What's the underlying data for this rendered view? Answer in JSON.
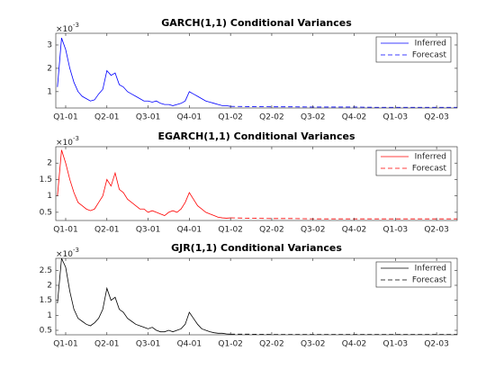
{
  "chart_data": [
    {
      "type": "line",
      "title": "GARCH(1,1) Conditional Variances",
      "y_exponent": {
        "base": "×10",
        "power": "-3"
      },
      "xlim": [
        -0.24,
        9.5
      ],
      "ylim": [
        0.3,
        3.5
      ],
      "yticks": [
        1,
        2,
        3
      ],
      "xticks": [
        {
          "value": 0,
          "label": "Q1-01"
        },
        {
          "value": 1,
          "label": "Q2-01"
        },
        {
          "value": 2,
          "label": "Q3-01"
        },
        {
          "value": 3,
          "label": "Q4-01"
        },
        {
          "value": 4,
          "label": "Q1-02"
        },
        {
          "value": 5,
          "label": "Q2-02"
        },
        {
          "value": 6,
          "label": "Q3-02"
        },
        {
          "value": 7,
          "label": "Q4-02"
        },
        {
          "value": 8,
          "label": "Q1-03"
        },
        {
          "value": 9,
          "label": "Q2-03"
        }
      ],
      "legend": "upper right",
      "series": [
        {
          "name": "Inferred",
          "color": "#0000ff",
          "line_style": "solid",
          "x": [
            -0.2,
            -0.1,
            0,
            0.1,
            0.2,
            0.3,
            0.4,
            0.5,
            0.6,
            0.7,
            0.8,
            0.9,
            1,
            1.1,
            1.2,
            1.3,
            1.4,
            1.5,
            1.6,
            1.7,
            1.8,
            1.9,
            2,
            2.1,
            2.2,
            2.3,
            2.4,
            2.5,
            2.6,
            2.7,
            2.8,
            2.9,
            3,
            3.1,
            3.2,
            3.3,
            3.4,
            3.5,
            3.6,
            3.7,
            3.8,
            3.9,
            4
          ],
          "values": [
            1.2,
            3.3,
            2.8,
            2.0,
            1.4,
            1.0,
            0.8,
            0.7,
            0.6,
            0.65,
            0.9,
            1.1,
            1.9,
            1.7,
            1.8,
            1.3,
            1.2,
            1.0,
            0.9,
            0.8,
            0.7,
            0.6,
            0.6,
            0.55,
            0.6,
            0.5,
            0.45,
            0.45,
            0.4,
            0.45,
            0.5,
            0.6,
            1.0,
            0.9,
            0.8,
            0.7,
            0.6,
            0.55,
            0.5,
            0.45,
            0.4,
            0.4,
            0.37
          ]
        },
        {
          "name": "Forecast",
          "color": "#0000ff",
          "line_style": "dashed",
          "x": [
            4,
            4.5,
            5,
            5.5,
            6,
            6.5,
            7,
            7.5,
            8,
            8.5,
            9,
            9.5
          ],
          "values": [
            0.37,
            0.36,
            0.35,
            0.35,
            0.34,
            0.34,
            0.34,
            0.33,
            0.33,
            0.33,
            0.33,
            0.33
          ]
        }
      ]
    },
    {
      "type": "line",
      "title": "EGARCH(1,1) Conditional Variances",
      "y_exponent": {
        "base": "×10",
        "power": "-3"
      },
      "xlim": [
        -0.24,
        9.5
      ],
      "ylim": [
        0.25,
        2.5
      ],
      "yticks": [
        0.5,
        1,
        1.5,
        2
      ],
      "xticks": [
        {
          "value": 0,
          "label": "Q1-01"
        },
        {
          "value": 1,
          "label": "Q2-01"
        },
        {
          "value": 2,
          "label": "Q3-01"
        },
        {
          "value": 3,
          "label": "Q4-01"
        },
        {
          "value": 4,
          "label": "Q1-02"
        },
        {
          "value": 5,
          "label": "Q2-02"
        },
        {
          "value": 6,
          "label": "Q3-02"
        },
        {
          "value": 7,
          "label": "Q4-02"
        },
        {
          "value": 8,
          "label": "Q1-03"
        },
        {
          "value": 9,
          "label": "Q2-03"
        }
      ],
      "legend": "upper right",
      "series": [
        {
          "name": "Inferred",
          "color": "#ff0000",
          "line_style": "solid",
          "x": [
            -0.2,
            -0.1,
            0,
            0.1,
            0.2,
            0.3,
            0.4,
            0.5,
            0.6,
            0.7,
            0.8,
            0.9,
            1,
            1.1,
            1.2,
            1.3,
            1.4,
            1.5,
            1.6,
            1.7,
            1.8,
            1.9,
            2,
            2.1,
            2.2,
            2.3,
            2.4,
            2.5,
            2.6,
            2.7,
            2.8,
            2.9,
            3,
            3.1,
            3.2,
            3.3,
            3.4,
            3.5,
            3.6,
            3.7,
            3.8,
            3.9,
            4
          ],
          "values": [
            1.0,
            2.4,
            2.0,
            1.5,
            1.1,
            0.8,
            0.7,
            0.6,
            0.55,
            0.6,
            0.8,
            1.0,
            1.5,
            1.3,
            1.7,
            1.2,
            1.1,
            0.9,
            0.8,
            0.7,
            0.6,
            0.6,
            0.5,
            0.55,
            0.5,
            0.45,
            0.4,
            0.5,
            0.55,
            0.5,
            0.6,
            0.8,
            1.1,
            0.9,
            0.7,
            0.6,
            0.5,
            0.45,
            0.4,
            0.35,
            0.33,
            0.32,
            0.33
          ]
        },
        {
          "name": "Forecast",
          "color": "#ff0000",
          "line_style": "dashed",
          "x": [
            4,
            4.5,
            5,
            5.5,
            6,
            6.5,
            7,
            7.5,
            8,
            8.5,
            9,
            9.5
          ],
          "values": [
            0.33,
            0.32,
            0.31,
            0.31,
            0.3,
            0.3,
            0.3,
            0.3,
            0.3,
            0.3,
            0.3,
            0.3
          ]
        }
      ]
    },
    {
      "type": "line",
      "title": "GJR(1,1) Conditional Variances",
      "y_exponent": {
        "base": "×10",
        "power": "-3"
      },
      "xlim": [
        -0.24,
        9.5
      ],
      "ylim": [
        0.35,
        2.9
      ],
      "yticks": [
        0.5,
        1,
        1.5,
        2,
        2.5
      ],
      "xticks": [
        {
          "value": 0,
          "label": "Q1-01"
        },
        {
          "value": 1,
          "label": "Q2-01"
        },
        {
          "value": 2,
          "label": "Q3-01"
        },
        {
          "value": 3,
          "label": "Q4-01"
        },
        {
          "value": 4,
          "label": "Q1-02"
        },
        {
          "value": 5,
          "label": "Q2-02"
        },
        {
          "value": 6,
          "label": "Q3-02"
        },
        {
          "value": 7,
          "label": "Q4-02"
        },
        {
          "value": 8,
          "label": "Q1-03"
        },
        {
          "value": 9,
          "label": "Q2-03"
        }
      ],
      "legend": "upper right",
      "series": [
        {
          "name": "Inferred",
          "color": "#000000",
          "line_style": "solid",
          "x": [
            -0.2,
            -0.1,
            0,
            0.1,
            0.2,
            0.3,
            0.4,
            0.5,
            0.6,
            0.7,
            0.8,
            0.9,
            1,
            1.1,
            1.2,
            1.3,
            1.4,
            1.5,
            1.6,
            1.7,
            1.8,
            1.9,
            2,
            2.1,
            2.2,
            2.3,
            2.4,
            2.5,
            2.6,
            2.7,
            2.8,
            2.9,
            3,
            3.1,
            3.2,
            3.3,
            3.4,
            3.5,
            3.6,
            3.7,
            3.8,
            3.9,
            4
          ],
          "values": [
            1.4,
            2.9,
            2.6,
            1.8,
            1.2,
            0.9,
            0.8,
            0.7,
            0.65,
            0.75,
            0.9,
            1.2,
            1.9,
            1.5,
            1.6,
            1.2,
            1.1,
            0.9,
            0.8,
            0.7,
            0.65,
            0.6,
            0.55,
            0.6,
            0.5,
            0.45,
            0.45,
            0.5,
            0.45,
            0.5,
            0.55,
            0.7,
            1.1,
            0.9,
            0.7,
            0.55,
            0.5,
            0.45,
            0.42,
            0.4,
            0.4,
            0.38,
            0.37
          ]
        },
        {
          "name": "Forecast",
          "color": "#000000",
          "line_style": "dashed",
          "x": [
            4,
            4.5,
            5,
            5.5,
            6,
            6.5,
            7,
            7.5,
            8,
            8.5,
            9,
            9.5
          ],
          "values": [
            0.37,
            0.37,
            0.36,
            0.36,
            0.36,
            0.36,
            0.36,
            0.36,
            0.36,
            0.36,
            0.36,
            0.36
          ]
        }
      ]
    }
  ]
}
